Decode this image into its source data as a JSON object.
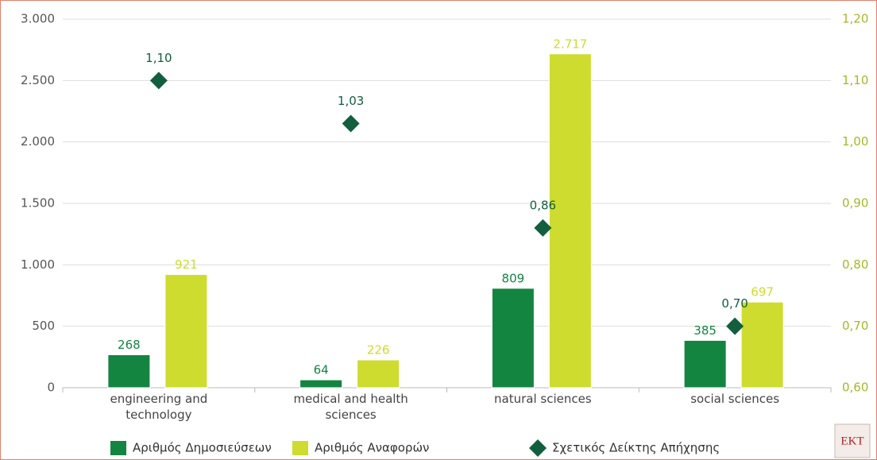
{
  "chart_data": {
    "type": "bar",
    "categories": [
      "engineering and technology",
      "medical and health sciences",
      "natural sciences",
      "social sciences"
    ],
    "series": [
      {
        "name": "Αριθμός Δημοσιεύσεων",
        "color": "#138540",
        "values": [
          268,
          64,
          809,
          385
        ]
      },
      {
        "name": "Αριθμός Αναφορών",
        "color": "#cddc2e",
        "values": [
          921,
          226,
          2717,
          697
        ],
        "value_labels": [
          "921",
          "226",
          "2.717",
          "697"
        ]
      },
      {
        "name": "Σχετικός Δείκτης Απήχησης",
        "color": "#135e3f",
        "axis": "y2",
        "type": "scatter",
        "values": [
          1.1,
          1.03,
          0.86,
          0.7
        ],
        "value_labels": [
          "1,10",
          "1,03",
          "0,86",
          "0,70"
        ]
      }
    ],
    "ylim": [
      0,
      3000
    ],
    "yticks": [
      0,
      500,
      {
        "value": 1000,
        "label": "1.000"
      },
      {
        "value": 1500,
        "label": "1.500"
      },
      {
        "value": 2000,
        "label": "2.000"
      },
      {
        "value": 2500,
        "label": "2.500"
      },
      {
        "value": 3000,
        "label": "3.000"
      }
    ],
    "y2lim": [
      0.6,
      1.2
    ],
    "y2ticks": [
      {
        "value": 0.6,
        "label": "0,60"
      },
      {
        "value": 0.7,
        "label": "0,70"
      },
      {
        "value": 0.8,
        "label": "0,80"
      },
      {
        "value": 0.9,
        "label": "0,90"
      },
      {
        "value": 1.0,
        "label": "1,00"
      },
      {
        "value": 1.1,
        "label": "1,10"
      },
      {
        "value": 1.2,
        "label": "1,20"
      }
    ],
    "grid": true,
    "legend": "bottom",
    "logo": "EKT"
  }
}
